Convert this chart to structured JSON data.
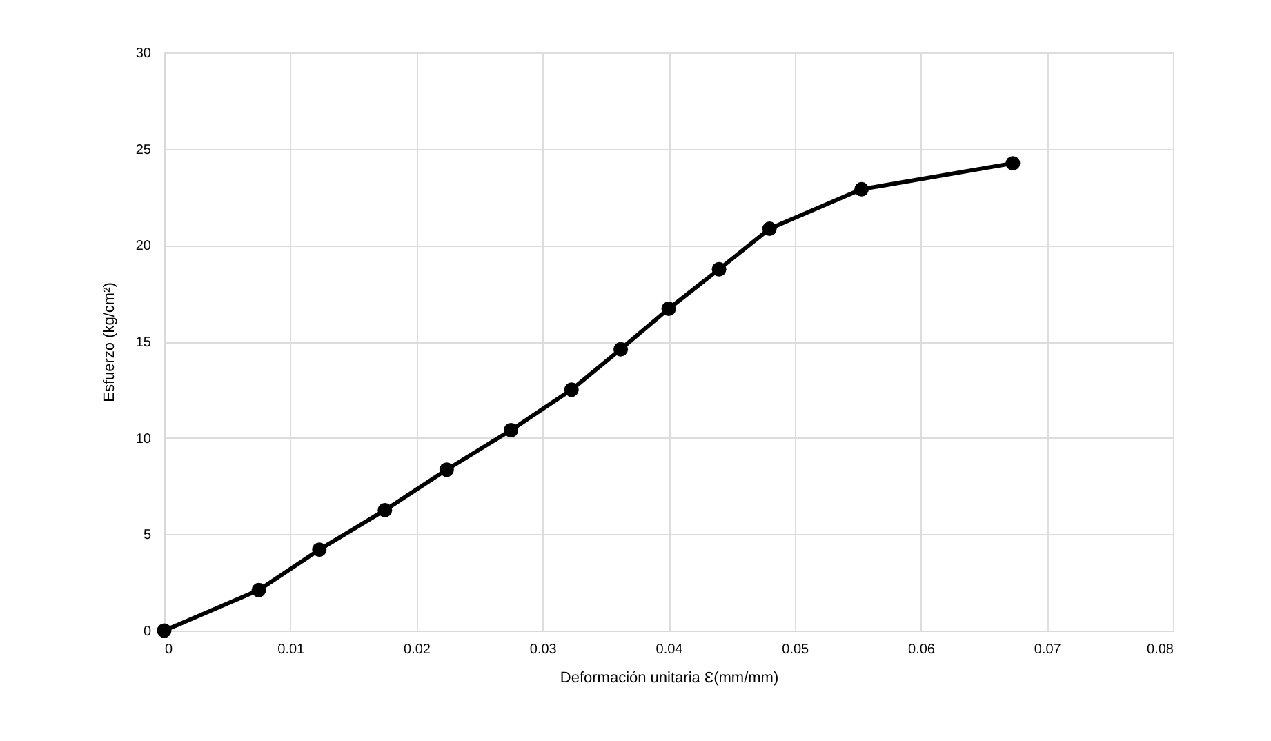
{
  "chart_data": {
    "type": "line",
    "xlabel": "Deformación unitaria Ɛ(mm/mm)",
    "ylabel": "Esfuerzo (kg/cm²)",
    "x": [
      0,
      0.0075,
      0.0123,
      0.0175,
      0.0224,
      0.0275,
      0.0323,
      0.0362,
      0.04,
      0.044,
      0.048,
      0.0553,
      0.0673
    ],
    "series": [
      {
        "color": "#000000",
        "values": [
          0,
          2.1,
          4.2,
          6.25,
          8.35,
          10.4,
          12.5,
          14.6,
          16.7,
          18.75,
          20.85,
          22.9,
          24.25
        ]
      }
    ],
    "xlim": [
      0,
      0.08
    ],
    "xticks": [
      0,
      0.01,
      0.02,
      0.03,
      0.04,
      0.05,
      0.06,
      0.07,
      0.08
    ],
    "ylim": [
      0,
      30
    ],
    "yticks": [
      0,
      5,
      10,
      15,
      20,
      25,
      30
    ],
    "grid": true,
    "marker": "circle",
    "line_style": "solid"
  }
}
